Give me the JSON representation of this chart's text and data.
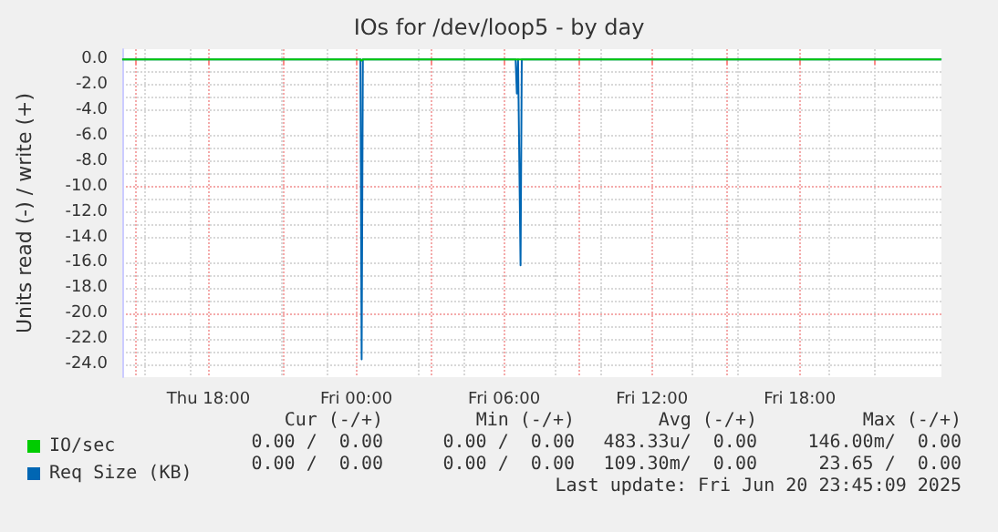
{
  "chart_data": {
    "type": "line",
    "title": "IOs for /dev/loop5 - by day",
    "ylabel": "Units read (-) / write (+)",
    "xlim": [
      "2025-06-19T14:30",
      "2025-06-20T23:45"
    ],
    "xticks": [
      {
        "value": "2025-06-19T15:00",
        "label": null
      },
      {
        "value": "2025-06-19T18:00",
        "label": "Thu 18:00"
      },
      {
        "value": "2025-06-19T21:00",
        "label": null
      },
      {
        "value": "2025-06-20T00:00",
        "label": "Fri 00:00"
      },
      {
        "value": "2025-06-20T03:00",
        "label": null
      },
      {
        "value": "2025-06-20T06:00",
        "label": "Fri 06:00"
      },
      {
        "value": "2025-06-20T09:00",
        "label": null
      },
      {
        "value": "2025-06-20T12:00",
        "label": "Fri 12:00"
      },
      {
        "value": "2025-06-20T15:00",
        "label": null
      },
      {
        "value": "2025-06-20T18:00",
        "label": "Fri 18:00"
      },
      {
        "value": "2025-06-20T21:00",
        "label": null
      }
    ],
    "ylim": [
      -25,
      0.8
    ],
    "yticks": [
      {
        "value": 0,
        "label": "0.0"
      },
      {
        "value": -2,
        "label": "-2.0"
      },
      {
        "value": -4,
        "label": "-4.0"
      },
      {
        "value": -6,
        "label": "-6.0"
      },
      {
        "value": -8,
        "label": "-8.0"
      },
      {
        "value": -10,
        "label": "-10.0"
      },
      {
        "value": -12,
        "label": "-12.0"
      },
      {
        "value": -14,
        "label": "-14.0"
      },
      {
        "value": -16,
        "label": "-16.0"
      },
      {
        "value": -18,
        "label": "-18.0"
      },
      {
        "value": -20,
        "label": "-20.0"
      },
      {
        "value": -22,
        "label": "-22.0"
      },
      {
        "value": -24,
        "label": "-24.0"
      }
    ],
    "grid": true,
    "legend": "bottom left",
    "marker": "none",
    "line_style": "solid",
    "series": [
      {
        "name": "IO/sec",
        "color": "#00cc00",
        "x": [
          "2025-06-19T14:30",
          "2025-06-20T00:10",
          "2025-06-20T00:13",
          "2025-06-20T00:16",
          "2025-06-20T23:45"
        ],
        "values": [
          0,
          0,
          -0.1,
          0,
          0
        ]
      },
      {
        "name": "Req Size (KB)",
        "color": "#0066b3",
        "x": [
          "2025-06-19T14:30",
          "2025-06-20T00:10",
          "2025-06-20T00:13",
          "2025-06-20T00:16",
          "2025-06-20T06:28",
          "2025-06-20T06:31",
          "2025-06-20T06:34",
          "2025-06-20T06:37",
          "2025-06-20T06:40",
          "2025-06-20T06:43",
          "2025-06-20T23:45"
        ],
        "values": [
          0,
          0,
          -23.6,
          0,
          0,
          -2.7,
          0,
          0,
          -16.2,
          0,
          0
        ]
      }
    ],
    "annotations": [
      "Cur (-/+)",
      "Min (-/+)",
      "Avg (-/+)",
      "Max (-/+)",
      "0.00 /  0.00",
      "0.00 /  0.00",
      "483.33u/  0.00",
      "146.00m/  0.00",
      "0.00 /  0.00",
      "0.00 /  0.00",
      "109.30m/  0.00",
      "23.65 /  0.00",
      "Last update: Fri Jun 20 23:45:09 2025"
    ]
  }
}
